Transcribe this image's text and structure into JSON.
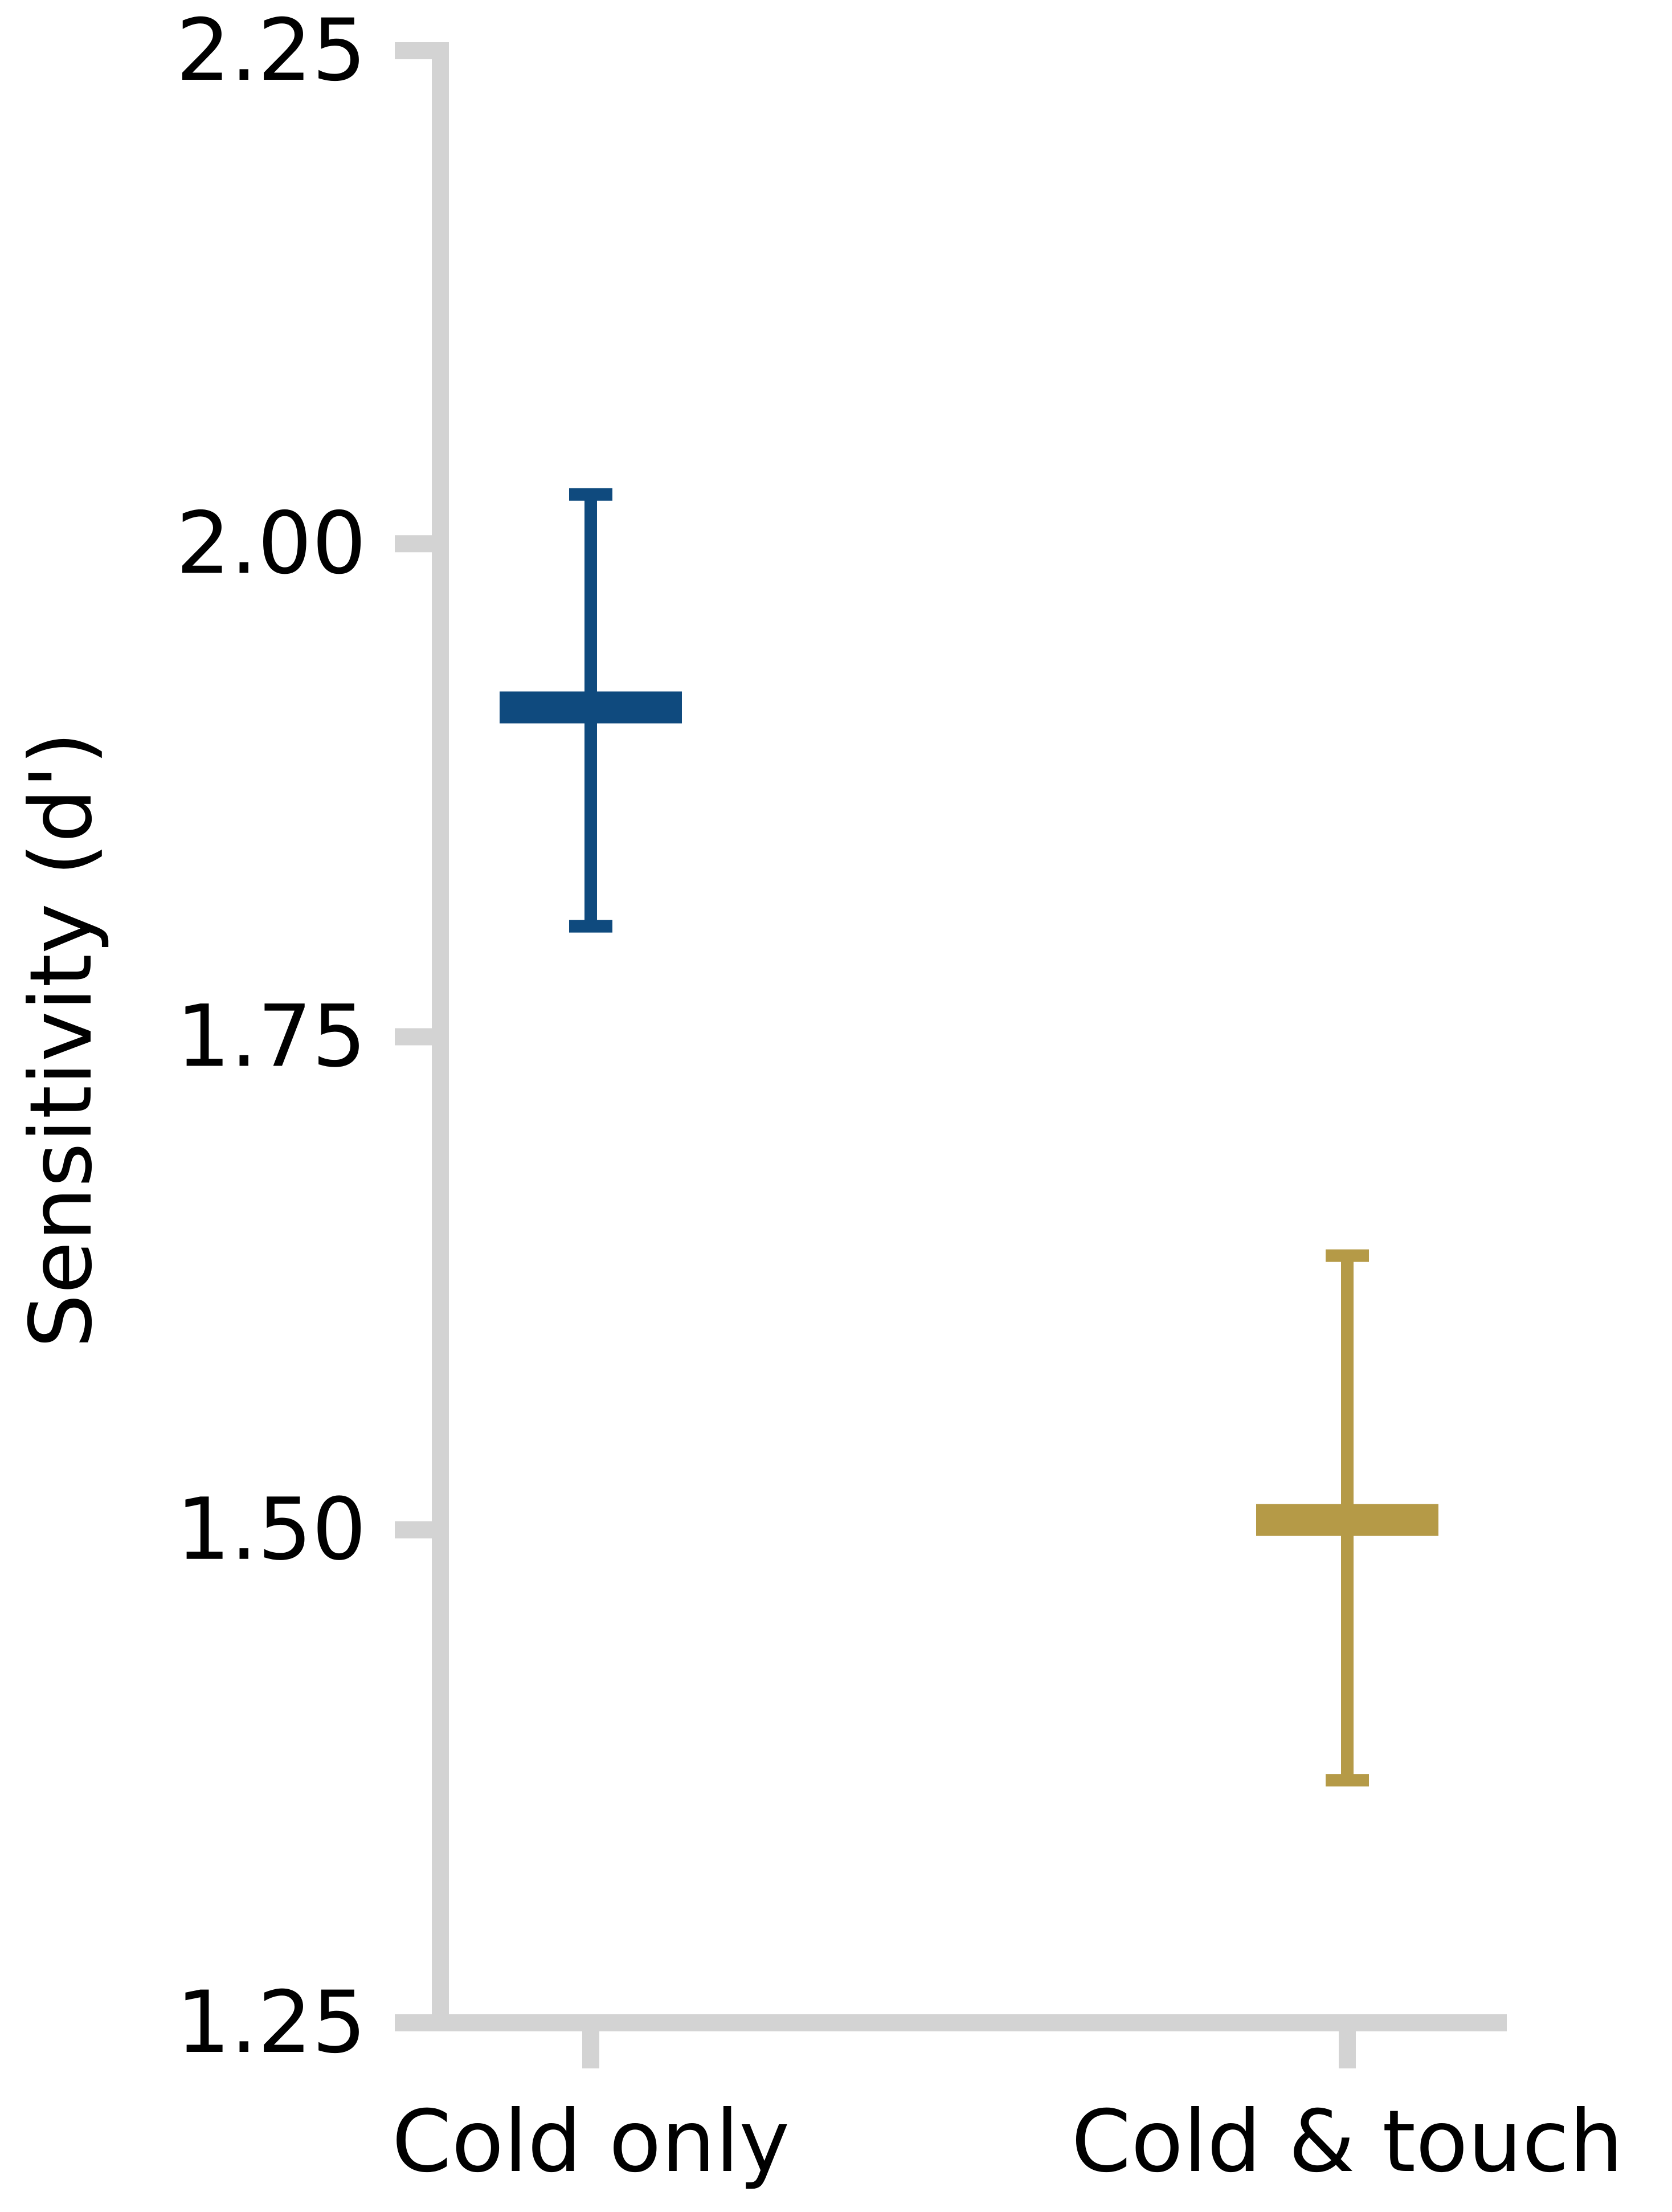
{
  "chart_data": {
    "type": "errorbar",
    "title": "",
    "xlabel": "",
    "ylabel": "Sensitivity (d')",
    "ylim": [
      1.25,
      2.25
    ],
    "yticks": [
      "1.25",
      "1.50",
      "1.75",
      "2.00",
      "2.25"
    ],
    "ytick_values": [
      1.25,
      1.5,
      1.75,
      2.0,
      2.25
    ],
    "categories": [
      "Cold only",
      "Cold & touch"
    ],
    "series": [
      {
        "category": "Cold only",
        "mean": 1.917,
        "lower": 1.806,
        "upper": 2.025,
        "color": "#0f4a7e"
      },
      {
        "category": "Cold & touch",
        "mean": 1.505,
        "lower": 1.373,
        "upper": 1.639,
        "color": "#b59a47"
      }
    ],
    "grid": false,
    "axis_color": "#d3d3d3"
  }
}
